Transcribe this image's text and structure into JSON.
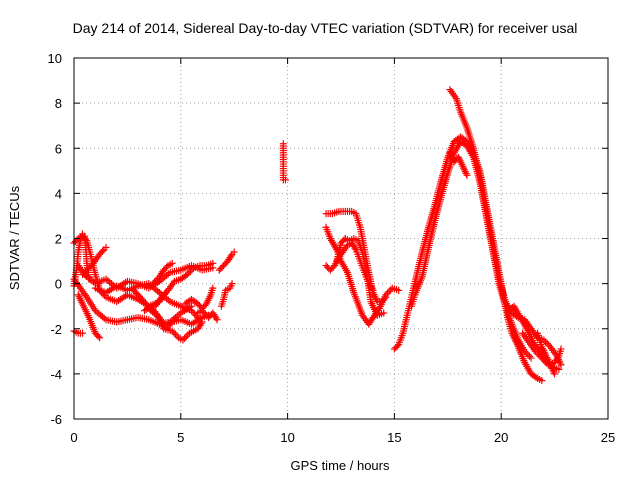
{
  "chart_data": {
    "type": "scatter",
    "title": "Day 214 of 2014, Sidereal Day-to-day VTEC variation (SDTVAR) for receiver usal",
    "xlabel": "GPS time / hours",
    "ylabel": "SDTVAR / TECUs",
    "xlim": [
      0,
      25
    ],
    "ylim": [
      -6,
      10
    ],
    "xticks": [
      0,
      5,
      10,
      15,
      20,
      25
    ],
    "yticks": [
      -6,
      -4,
      -2,
      0,
      2,
      4,
      6,
      8,
      10
    ],
    "grid": true,
    "marker": "+",
    "series": [
      {
        "name": "SDTVAR",
        "color": "#ff0000",
        "tracks": [
          [
            [
              0.0,
              -2.1
            ],
            [
              0.2,
              -2.2
            ],
            [
              0.4,
              -2.2
            ]
          ],
          [
            [
              0.0,
              -0.1
            ],
            [
              0.1,
              0.5
            ],
            [
              0.2,
              1.4
            ],
            [
              0.3,
              1.9
            ],
            [
              0.4,
              2.2
            ],
            [
              0.5,
              2.1
            ],
            [
              0.55,
              1.6
            ],
            [
              0.6,
              0.9
            ],
            [
              0.7,
              0.2
            ]
          ],
          [
            [
              0.0,
              1.8
            ],
            [
              0.2,
              2.0
            ],
            [
              0.4,
              2.1
            ],
            [
              0.6,
              1.9
            ],
            [
              0.8,
              1.2
            ],
            [
              1.0,
              0.4
            ],
            [
              1.2,
              -0.3
            ],
            [
              1.5,
              -0.6
            ],
            [
              2.0,
              -0.8
            ],
            [
              2.5,
              -0.5
            ],
            [
              3.0,
              -0.7
            ],
            [
              3.5,
              -1.0
            ],
            [
              4.0,
              -0.8
            ],
            [
              4.3,
              -0.4
            ]
          ],
          [
            [
              0.0,
              0.2
            ],
            [
              0.3,
              -0.2
            ],
            [
              0.6,
              -0.6
            ],
            [
              1.0,
              -1.2
            ],
            [
              1.5,
              -1.6
            ],
            [
              2.0,
              -1.7
            ],
            [
              2.5,
              -1.6
            ],
            [
              3.0,
              -1.5
            ],
            [
              3.5,
              -1.6
            ],
            [
              4.0,
              -1.8
            ],
            [
              4.5,
              -1.7
            ],
            [
              5.0,
              -1.3
            ],
            [
              5.5,
              -1.0
            ]
          ],
          [
            [
              0.2,
              0.8
            ],
            [
              0.5,
              0.4
            ],
            [
              1.0,
              0.0
            ],
            [
              1.5,
              0.2
            ],
            [
              2.0,
              -0.2
            ],
            [
              2.5,
              0.1
            ],
            [
              3.0,
              0.0
            ],
            [
              3.5,
              -0.2
            ],
            [
              4.0,
              0.1
            ],
            [
              4.5,
              0.5
            ],
            [
              5.0,
              0.6
            ],
            [
              5.5,
              0.8
            ],
            [
              6.0,
              0.6
            ],
            [
              6.5,
              0.7
            ]
          ],
          [
            [
              0.2,
              -0.5
            ],
            [
              0.4,
              -0.9
            ],
            [
              0.7,
              -1.5
            ],
            [
              1.0,
              -2.2
            ],
            [
              1.2,
              -2.4
            ]
          ],
          [
            [
              0.4,
              0.4
            ],
            [
              0.6,
              0.6
            ],
            [
              0.9,
              0.9
            ],
            [
              1.2,
              1.3
            ],
            [
              1.4,
              1.5
            ],
            [
              1.5,
              1.6
            ]
          ],
          [
            [
              1.0,
              -0.2
            ],
            [
              1.5,
              -0.4
            ],
            [
              2.0,
              -0.1
            ],
            [
              2.5,
              -0.3
            ],
            [
              3.0,
              -0.1
            ],
            [
              3.5,
              0.0
            ],
            [
              4.0,
              -0.4
            ],
            [
              4.5,
              -0.8
            ],
            [
              5.0,
              -1.0
            ],
            [
              5.5,
              -1.2
            ],
            [
              5.8,
              -1.5
            ]
          ],
          [
            [
              2.8,
              -0.3
            ],
            [
              3.2,
              -0.7
            ],
            [
              3.6,
              -1.2
            ],
            [
              4.0,
              -1.5
            ],
            [
              4.3,
              -2.0
            ],
            [
              4.6,
              -1.7
            ],
            [
              5.0,
              -1.6
            ],
            [
              5.5,
              -1.8
            ],
            [
              6.0,
              -1.5
            ],
            [
              6.3,
              -1.4
            ]
          ],
          [
            [
              3.3,
              -1.2
            ],
            [
              3.6,
              -1.0
            ],
            [
              3.9,
              -1.4
            ],
            [
              4.2,
              -2.0
            ],
            [
              4.6,
              -2.1
            ],
            [
              4.9,
              -2.4
            ],
            [
              5.1,
              -2.5
            ],
            [
              5.4,
              -2.2
            ],
            [
              5.8,
              -2.0
            ],
            [
              6.0,
              -1.7
            ]
          ],
          [
            [
              3.7,
              0.0
            ],
            [
              4.0,
              0.3
            ],
            [
              4.2,
              0.6
            ],
            [
              4.4,
              0.8
            ],
            [
              4.6,
              0.9
            ]
          ],
          [
            [
              3.8,
              -1.0
            ],
            [
              4.1,
              -0.6
            ],
            [
              4.4,
              -0.3
            ],
            [
              4.7,
              0.1
            ],
            [
              5.0,
              0.2
            ],
            [
              5.3,
              0.4
            ],
            [
              5.6,
              0.7
            ],
            [
              5.9,
              0.8
            ],
            [
              6.2,
              0.8
            ],
            [
              6.5,
              0.9
            ]
          ],
          [
            [
              5.2,
              -0.9
            ],
            [
              5.5,
              -0.7
            ],
            [
              5.8,
              -0.9
            ],
            [
              6.0,
              -1.1
            ],
            [
              6.2,
              -0.9
            ],
            [
              6.4,
              -0.5
            ],
            [
              6.5,
              -0.2
            ]
          ],
          [
            [
              5.8,
              -1.3
            ],
            [
              6.0,
              -1.2
            ],
            [
              6.3,
              -1.5
            ],
            [
              6.5,
              -1.3
            ],
            [
              6.7,
              -1.6
            ]
          ],
          [
            [
              6.8,
              0.6
            ],
            [
              7.0,
              0.8
            ],
            [
              7.2,
              1.0
            ],
            [
              7.4,
              1.3
            ],
            [
              7.5,
              1.4
            ]
          ],
          [
            [
              6.9,
              -1.0
            ],
            [
              7.0,
              -0.7
            ],
            [
              7.1,
              -0.3
            ],
            [
              7.3,
              -0.2
            ],
            [
              7.4,
              0.0
            ]
          ],
          [
            [
              9.8,
              6.2
            ],
            [
              9.8,
              5.9
            ],
            [
              9.8,
              4.6
            ],
            [
              9.9,
              4.6
            ]
          ],
          [
            [
              11.8,
              2.5
            ],
            [
              12.0,
              2.0
            ],
            [
              12.3,
              1.5
            ],
            [
              12.5,
              1.0
            ],
            [
              12.8,
              0.5
            ],
            [
              13.1,
              -0.4
            ],
            [
              13.5,
              -1.4
            ],
            [
              13.8,
              -1.8
            ],
            [
              14.0,
              -1.5
            ],
            [
              14.3,
              -1.1
            ],
            [
              14.6,
              -0.5
            ],
            [
              14.9,
              -0.2
            ],
            [
              15.2,
              -0.3
            ]
          ],
          [
            [
              11.8,
              3.1
            ],
            [
              12.1,
              3.1
            ],
            [
              12.4,
              3.2
            ],
            [
              12.7,
              3.2
            ],
            [
              13.0,
              3.2
            ],
            [
              13.2,
              3.1
            ],
            [
              13.4,
              2.5
            ],
            [
              13.6,
              1.5
            ],
            [
              13.8,
              0.5
            ],
            [
              14.0,
              -0.4
            ],
            [
              14.2,
              -0.8
            ],
            [
              14.4,
              -0.8
            ],
            [
              14.6,
              -0.6
            ]
          ],
          [
            [
              11.8,
              0.8
            ],
            [
              12.0,
              0.6
            ],
            [
              12.2,
              0.8
            ],
            [
              12.5,
              1.3
            ],
            [
              12.8,
              1.7
            ],
            [
              13.0,
              1.8
            ],
            [
              13.2,
              1.5
            ],
            [
              13.4,
              1.0
            ],
            [
              13.6,
              0.5
            ],
            [
              13.8,
              0.0
            ],
            [
              14.0,
              -0.3
            ]
          ],
          [
            [
              12.3,
              1.0
            ],
            [
              12.5,
              1.8
            ],
            [
              12.7,
              2.0
            ],
            [
              12.9,
              1.9
            ],
            [
              13.1,
              2.0
            ],
            [
              13.3,
              1.9
            ],
            [
              13.5,
              1.4
            ],
            [
              13.7,
              0.5
            ],
            [
              13.9,
              -0.8
            ],
            [
              14.2,
              -1.4
            ],
            [
              14.5,
              -1.3
            ]
          ],
          [
            [
              15.0,
              -2.9
            ],
            [
              15.2,
              -2.7
            ],
            [
              15.4,
              -2.2
            ],
            [
              15.6,
              -1.4
            ],
            [
              15.8,
              -0.6
            ],
            [
              16.0,
              0.2
            ],
            [
              16.3,
              1.4
            ],
            [
              16.6,
              2.5
            ],
            [
              16.9,
              3.5
            ],
            [
              17.2,
              4.6
            ],
            [
              17.5,
              5.6
            ],
            [
              17.8,
              6.3
            ],
            [
              18.1,
              6.5
            ],
            [
              18.4,
              6.3
            ],
            [
              18.7,
              5.8
            ],
            [
              19.0,
              5.0
            ],
            [
              19.3,
              3.5
            ],
            [
              19.6,
              2.0
            ],
            [
              19.9,
              0.5
            ],
            [
              20.1,
              -0.5
            ],
            [
              20.3,
              -1.5
            ],
            [
              20.5,
              -2.2
            ],
            [
              20.8,
              -2.8
            ],
            [
              21.1,
              -3.5
            ],
            [
              21.4,
              -4.0
            ],
            [
              21.7,
              -4.2
            ],
            [
              21.9,
              -4.3
            ]
          ],
          [
            [
              15.8,
              -1.0
            ],
            [
              16.0,
              -0.4
            ],
            [
              16.3,
              0.3
            ],
            [
              16.6,
              1.6
            ],
            [
              16.9,
              2.8
            ],
            [
              17.2,
              3.9
            ],
            [
              17.5,
              4.9
            ],
            [
              17.8,
              5.8
            ],
            [
              18.1,
              6.3
            ],
            [
              18.4,
              6.1
            ],
            [
              18.7,
              5.6
            ],
            [
              19.0,
              4.5
            ],
            [
              19.3,
              3.0
            ],
            [
              19.6,
              1.5
            ],
            [
              19.9,
              0.0
            ],
            [
              20.2,
              -1.0
            ],
            [
              20.5,
              -1.8
            ],
            [
              20.8,
              -2.5
            ],
            [
              21.1,
              -3.0
            ],
            [
              21.4,
              -3.3
            ]
          ],
          [
            [
              17.6,
              5.8
            ],
            [
              17.8,
              5.4
            ],
            [
              18.0,
              5.6
            ],
            [
              18.2,
              5.2
            ],
            [
              18.4,
              4.8
            ]
          ],
          [
            [
              17.6,
              8.6
            ],
            [
              17.9,
              8.2
            ],
            [
              18.1,
              7.6
            ],
            [
              18.4,
              6.9
            ],
            [
              18.7,
              6.0
            ],
            [
              19.0,
              4.8
            ],
            [
              19.3,
              3.2
            ],
            [
              19.6,
              1.6
            ],
            [
              19.9,
              0.2
            ],
            [
              20.2,
              -0.8
            ],
            [
              20.5,
              -1.3
            ],
            [
              20.8,
              -1.5
            ],
            [
              21.1,
              -1.6
            ],
            [
              21.4,
              -2.0
            ],
            [
              21.7,
              -2.4
            ],
            [
              22.0,
              -2.5
            ],
            [
              22.3,
              -2.8
            ],
            [
              22.6,
              -3.2
            ],
            [
              22.8,
              -3.6
            ]
          ],
          [
            [
              20.3,
              -1.2
            ],
            [
              20.6,
              -1.0
            ],
            [
              20.9,
              -1.5
            ],
            [
              21.2,
              -2.0
            ],
            [
              21.5,
              -2.6
            ],
            [
              21.8,
              -3.0
            ],
            [
              22.1,
              -3.4
            ],
            [
              22.4,
              -3.7
            ],
            [
              22.7,
              -3.8
            ]
          ],
          [
            [
              21.0,
              -2.2
            ],
            [
              21.3,
              -2.6
            ],
            [
              21.6,
              -3.0
            ],
            [
              21.9,
              -3.3
            ],
            [
              22.2,
              -3.6
            ],
            [
              22.5,
              -3.5
            ],
            [
              22.7,
              -3.2
            ],
            [
              22.8,
              -2.9
            ]
          ],
          [
            [
              21.7,
              -2.2
            ],
            [
              21.9,
              -2.8
            ],
            [
              22.1,
              -3.2
            ],
            [
              22.3,
              -3.6
            ],
            [
              22.5,
              -4.0
            ]
          ]
        ]
      }
    ]
  }
}
